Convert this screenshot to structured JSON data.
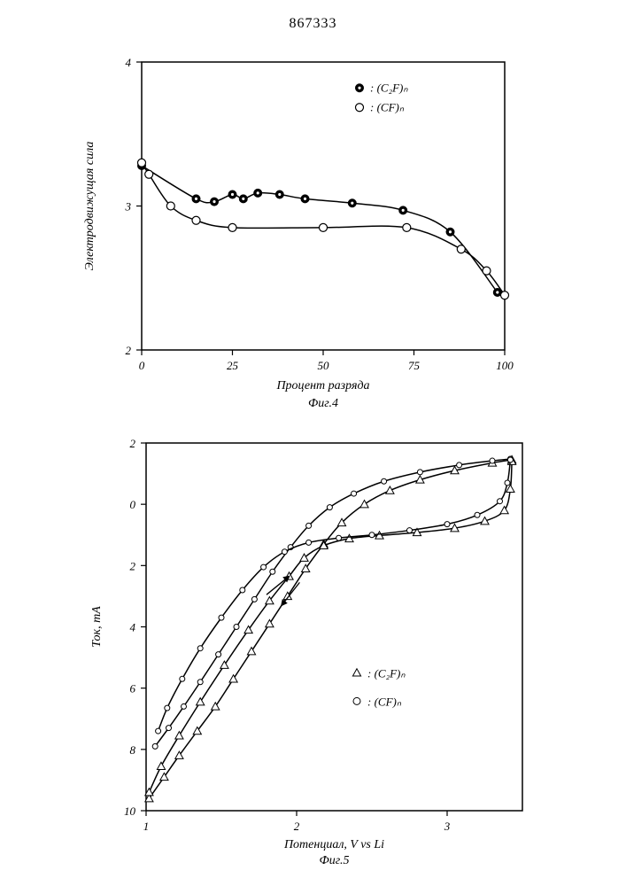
{
  "doc_number": "867333",
  "fig4": {
    "type": "line",
    "title": "",
    "caption": "Фиг.4",
    "xlabel": "Процент разряда",
    "ylabel": "Электродвижущая сила",
    "label_fontsize": 14,
    "caption_fontsize": 14,
    "tick_fontsize": 13,
    "xlim": [
      0,
      100
    ],
    "ylim": [
      2,
      4
    ],
    "xticks": [
      0,
      25,
      50,
      75,
      100
    ],
    "yticks": [
      2,
      3,
      4
    ],
    "background_color": "#ffffff",
    "axis_color": "#000000",
    "axis_width": 1.5,
    "legend": {
      "position_xy": [
        60,
        3.82
      ],
      "items": [
        {
          "marker": "filled-circle-dot",
          "label": "(C₂F)ₙ"
        },
        {
          "marker": "open-circle",
          "label": "(CF)ₙ"
        }
      ]
    },
    "series": [
      {
        "name": "(C₂F)ₙ",
        "marker": "filled-circle-dot",
        "marker_size": 4.5,
        "marker_fill": "#000000",
        "marker_dot_fill": "#ffffff",
        "line_color": "#000000",
        "line_width": 1.5,
        "points": [
          [
            0,
            3.28
          ],
          [
            15,
            3.05
          ],
          [
            20,
            3.03
          ],
          [
            25,
            3.08
          ],
          [
            28,
            3.05
          ],
          [
            32,
            3.09
          ],
          [
            38,
            3.08
          ],
          [
            45,
            3.05
          ],
          [
            58,
            3.02
          ],
          [
            72,
            2.97
          ],
          [
            85,
            2.82
          ],
          [
            98,
            2.4
          ]
        ]
      },
      {
        "name": "(CF)ₙ",
        "marker": "open-circle",
        "marker_size": 4.5,
        "marker_fill": "#ffffff",
        "marker_stroke": "#000000",
        "line_color": "#000000",
        "line_width": 1.5,
        "points": [
          [
            0,
            3.3
          ],
          [
            2,
            3.22
          ],
          [
            8,
            3.0
          ],
          [
            15,
            2.9
          ],
          [
            25,
            2.85
          ],
          [
            50,
            2.85
          ],
          [
            73,
            2.85
          ],
          [
            88,
            2.7
          ],
          [
            95,
            2.55
          ],
          [
            100,
            2.38
          ]
        ]
      }
    ]
  },
  "fig5": {
    "type": "line",
    "title": "",
    "caption": "Фиг.5",
    "xlabel": "Потенциал, V vs Li",
    "ylabel": "Ток, mA",
    "label_fontsize": 14,
    "caption_fontsize": 14,
    "tick_fontsize": 13,
    "xlim": [
      1,
      3.5
    ],
    "ylim": [
      10,
      -2
    ],
    "xticks": [
      1,
      2,
      3
    ],
    "yticks": [
      10,
      8,
      6,
      4,
      2,
      0,
      -2
    ],
    "ytick_labels": [
      "10",
      "8",
      "6",
      "4",
      "2",
      "0",
      "2"
    ],
    "background_color": "#ffffff",
    "axis_color": "#000000",
    "axis_width": 1.5,
    "legend": {
      "position_xy": [
        2.4,
        5.5
      ],
      "items": [
        {
          "marker": "open-triangle",
          "label": "(C₂F)ₙ"
        },
        {
          "marker": "open-circle-small",
          "label": "(CF)ₙ"
        }
      ]
    },
    "arrows": [
      {
        "from": [
          1.8,
          2.95
        ],
        "to": [
          1.95,
          2.35
        ],
        "color": "#000"
      },
      {
        "from": [
          2.02,
          2.55
        ],
        "to": [
          1.9,
          3.3
        ],
        "color": "#000"
      }
    ],
    "series": [
      {
        "name": "(C₂F)ₙ upper",
        "marker": "open-triangle",
        "marker_size": 4,
        "line_color": "#000000",
        "line_width": 1.5,
        "points": [
          [
            1.02,
            9.6
          ],
          [
            1.12,
            8.9
          ],
          [
            1.22,
            8.2
          ],
          [
            1.34,
            7.4
          ],
          [
            1.46,
            6.6
          ],
          [
            1.58,
            5.7
          ],
          [
            1.7,
            4.8
          ],
          [
            1.82,
            3.9
          ],
          [
            1.94,
            3.0
          ],
          [
            2.06,
            2.1
          ],
          [
            2.18,
            1.3
          ],
          [
            2.3,
            0.6
          ],
          [
            2.45,
            0.0
          ],
          [
            2.62,
            -0.45
          ],
          [
            2.82,
            -0.8
          ],
          [
            3.05,
            -1.1
          ],
          [
            3.3,
            -1.35
          ],
          [
            3.43,
            -1.45
          ]
        ]
      },
      {
        "name": "(C₂F)ₙ lower",
        "marker": "open-triangle",
        "marker_size": 4,
        "line_color": "#000000",
        "line_width": 1.5,
        "points": [
          [
            3.43,
            -1.4
          ],
          [
            3.42,
            -0.5
          ],
          [
            3.38,
            0.2
          ],
          [
            3.25,
            0.55
          ],
          [
            3.05,
            0.78
          ],
          [
            2.8,
            0.92
          ],
          [
            2.55,
            1.02
          ],
          [
            2.35,
            1.12
          ],
          [
            2.18,
            1.35
          ],
          [
            2.05,
            1.75
          ],
          [
            1.95,
            2.35
          ],
          [
            1.82,
            3.15
          ],
          [
            1.68,
            4.1
          ],
          [
            1.52,
            5.25
          ],
          [
            1.36,
            6.45
          ],
          [
            1.22,
            7.55
          ],
          [
            1.1,
            8.55
          ],
          [
            1.02,
            9.4
          ]
        ]
      },
      {
        "name": "(CF)ₙ upper",
        "marker": "open-circle-small",
        "marker_size": 3,
        "line_color": "#000000",
        "line_width": 1.5,
        "points": [
          [
            1.06,
            7.9
          ],
          [
            1.15,
            7.3
          ],
          [
            1.25,
            6.6
          ],
          [
            1.36,
            5.8
          ],
          [
            1.48,
            4.9
          ],
          [
            1.6,
            4.0
          ],
          [
            1.72,
            3.1
          ],
          [
            1.84,
            2.2
          ],
          [
            1.96,
            1.4
          ],
          [
            2.08,
            0.7
          ],
          [
            2.22,
            0.1
          ],
          [
            2.38,
            -0.35
          ],
          [
            2.58,
            -0.75
          ],
          [
            2.82,
            -1.05
          ],
          [
            3.08,
            -1.28
          ],
          [
            3.3,
            -1.42
          ],
          [
            3.42,
            -1.48
          ]
        ]
      },
      {
        "name": "(CF)ₙ lower",
        "marker": "open-circle-small",
        "marker_size": 3,
        "line_color": "#000000",
        "line_width": 1.5,
        "points": [
          [
            3.42,
            -1.45
          ],
          [
            3.4,
            -0.7
          ],
          [
            3.35,
            -0.1
          ],
          [
            3.2,
            0.35
          ],
          [
            3.0,
            0.65
          ],
          [
            2.75,
            0.85
          ],
          [
            2.5,
            1.0
          ],
          [
            2.28,
            1.1
          ],
          [
            2.08,
            1.25
          ],
          [
            1.92,
            1.55
          ],
          [
            1.78,
            2.05
          ],
          [
            1.64,
            2.8
          ],
          [
            1.5,
            3.7
          ],
          [
            1.36,
            4.7
          ],
          [
            1.24,
            5.7
          ],
          [
            1.14,
            6.65
          ],
          [
            1.08,
            7.4
          ]
        ]
      }
    ]
  }
}
